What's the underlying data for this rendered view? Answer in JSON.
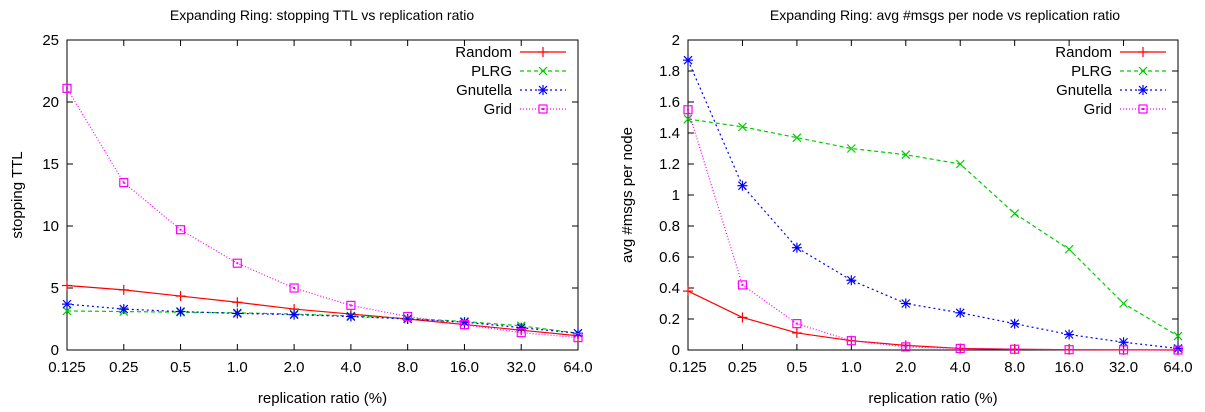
{
  "chart_data": [
    {
      "type": "line",
      "title": "Expanding Ring: stopping TTL vs replication ratio",
      "xlabel": "replication ratio (%)",
      "ylabel": "stopping TTL",
      "categories": [
        "0.125",
        "0.25",
        "0.5",
        "1.0",
        "2.0",
        "4.0",
        "8.0",
        "16.0",
        "32.0",
        "64.0"
      ],
      "ylim": [
        0,
        25
      ],
      "yticks": [
        "0",
        "5",
        "10",
        "15",
        "20",
        "25"
      ],
      "legend_position": "top-right",
      "series": [
        {
          "name": "Random",
          "color": "#ff0000",
          "dash": "",
          "marker": "plus",
          "values": [
            5.2,
            4.85,
            4.35,
            3.85,
            3.3,
            2.9,
            2.5,
            2.05,
            1.6,
            1.15
          ]
        },
        {
          "name": "PLRG",
          "color": "#00cc00",
          "dash": "4,3",
          "marker": "cross",
          "values": [
            3.15,
            3.1,
            3.05,
            3.0,
            2.9,
            2.75,
            2.55,
            2.3,
            1.95,
            1.35
          ]
        },
        {
          "name": "Gnutella",
          "color": "#0000ff",
          "dash": "2,3",
          "marker": "star",
          "values": [
            3.7,
            3.3,
            3.1,
            2.95,
            2.85,
            2.7,
            2.5,
            2.25,
            1.8,
            1.35
          ]
        },
        {
          "name": "Grid",
          "color": "#ff00ff",
          "dash": "1,2",
          "marker": "square",
          "values": [
            21.1,
            13.5,
            9.7,
            7.0,
            5.0,
            3.6,
            2.7,
            2.05,
            1.4,
            1.0
          ]
        }
      ]
    },
    {
      "type": "line",
      "title": "Expanding Ring: avg #msgs per node vs replication ratio",
      "xlabel": "replication ratio (%)",
      "ylabel": "avg #msgs per node",
      "categories": [
        "0.125",
        "0.25",
        "0.5",
        "1.0",
        "2.0",
        "4.0",
        "8.0",
        "16.0",
        "32.0",
        "64.0"
      ],
      "ylim": [
        0,
        2
      ],
      "yticks": [
        "0",
        "0.2",
        "0.4",
        "0.6",
        "0.8",
        "1",
        "1.2",
        "1.4",
        "1.6",
        "1.8",
        "2"
      ],
      "legend_position": "top-right",
      "series": [
        {
          "name": "Random",
          "color": "#ff0000",
          "dash": "",
          "marker": "plus",
          "values": [
            0.38,
            0.21,
            0.11,
            0.06,
            0.03,
            0.01,
            0.005,
            0.002,
            0.001,
            0.0
          ]
        },
        {
          "name": "PLRG",
          "color": "#00cc00",
          "dash": "4,3",
          "marker": "cross",
          "values": [
            1.49,
            1.44,
            1.37,
            1.3,
            1.26,
            1.2,
            0.88,
            0.65,
            0.3,
            0.09
          ]
        },
        {
          "name": "Gnutella",
          "color": "#0000ff",
          "dash": "2,3",
          "marker": "star",
          "values": [
            1.87,
            1.06,
            0.66,
            0.45,
            0.3,
            0.24,
            0.17,
            0.1,
            0.05,
            0.01
          ]
        },
        {
          "name": "Grid",
          "color": "#ff00ff",
          "dash": "1,2",
          "marker": "square",
          "values": [
            1.55,
            0.42,
            0.17,
            0.06,
            0.02,
            0.01,
            0.005,
            0.002,
            0.001,
            0.0
          ]
        }
      ]
    }
  ]
}
